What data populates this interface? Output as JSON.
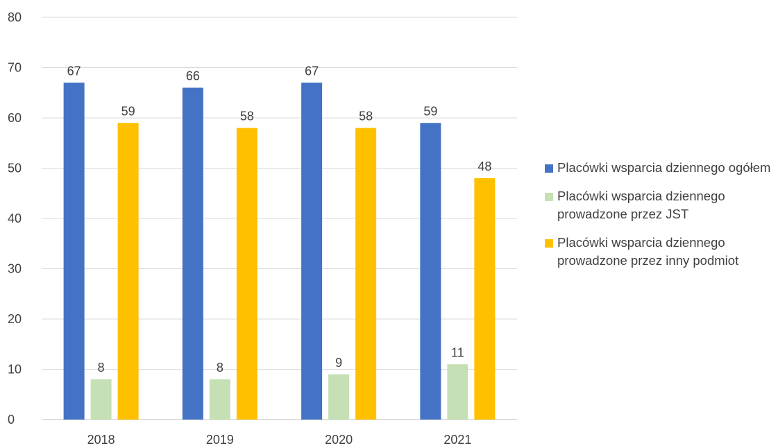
{
  "chart_data": {
    "type": "bar",
    "categories": [
      "2018",
      "2019",
      "2020",
      "2021"
    ],
    "series": [
      {
        "name": "Placówki wsparcia dziennego ogółem",
        "values": [
          67,
          66,
          67,
          59
        ],
        "color": "#4472C4"
      },
      {
        "name": "Placówki wsparcia dziennego prowadzone przez JST",
        "values": [
          8,
          8,
          9,
          11
        ],
        "color": "#C5E0B4"
      },
      {
        "name": "Placówki wsparcia dziennego prowadzone przez inny podmiot",
        "values": [
          59,
          58,
          58,
          48
        ],
        "color": "#FFC000"
      }
    ],
    "ylim": [
      0,
      80
    ],
    "yticks": [
      0,
      10,
      20,
      30,
      40,
      50,
      60,
      70,
      80
    ],
    "grid": true,
    "data_labels": true,
    "legend_position": "right"
  }
}
